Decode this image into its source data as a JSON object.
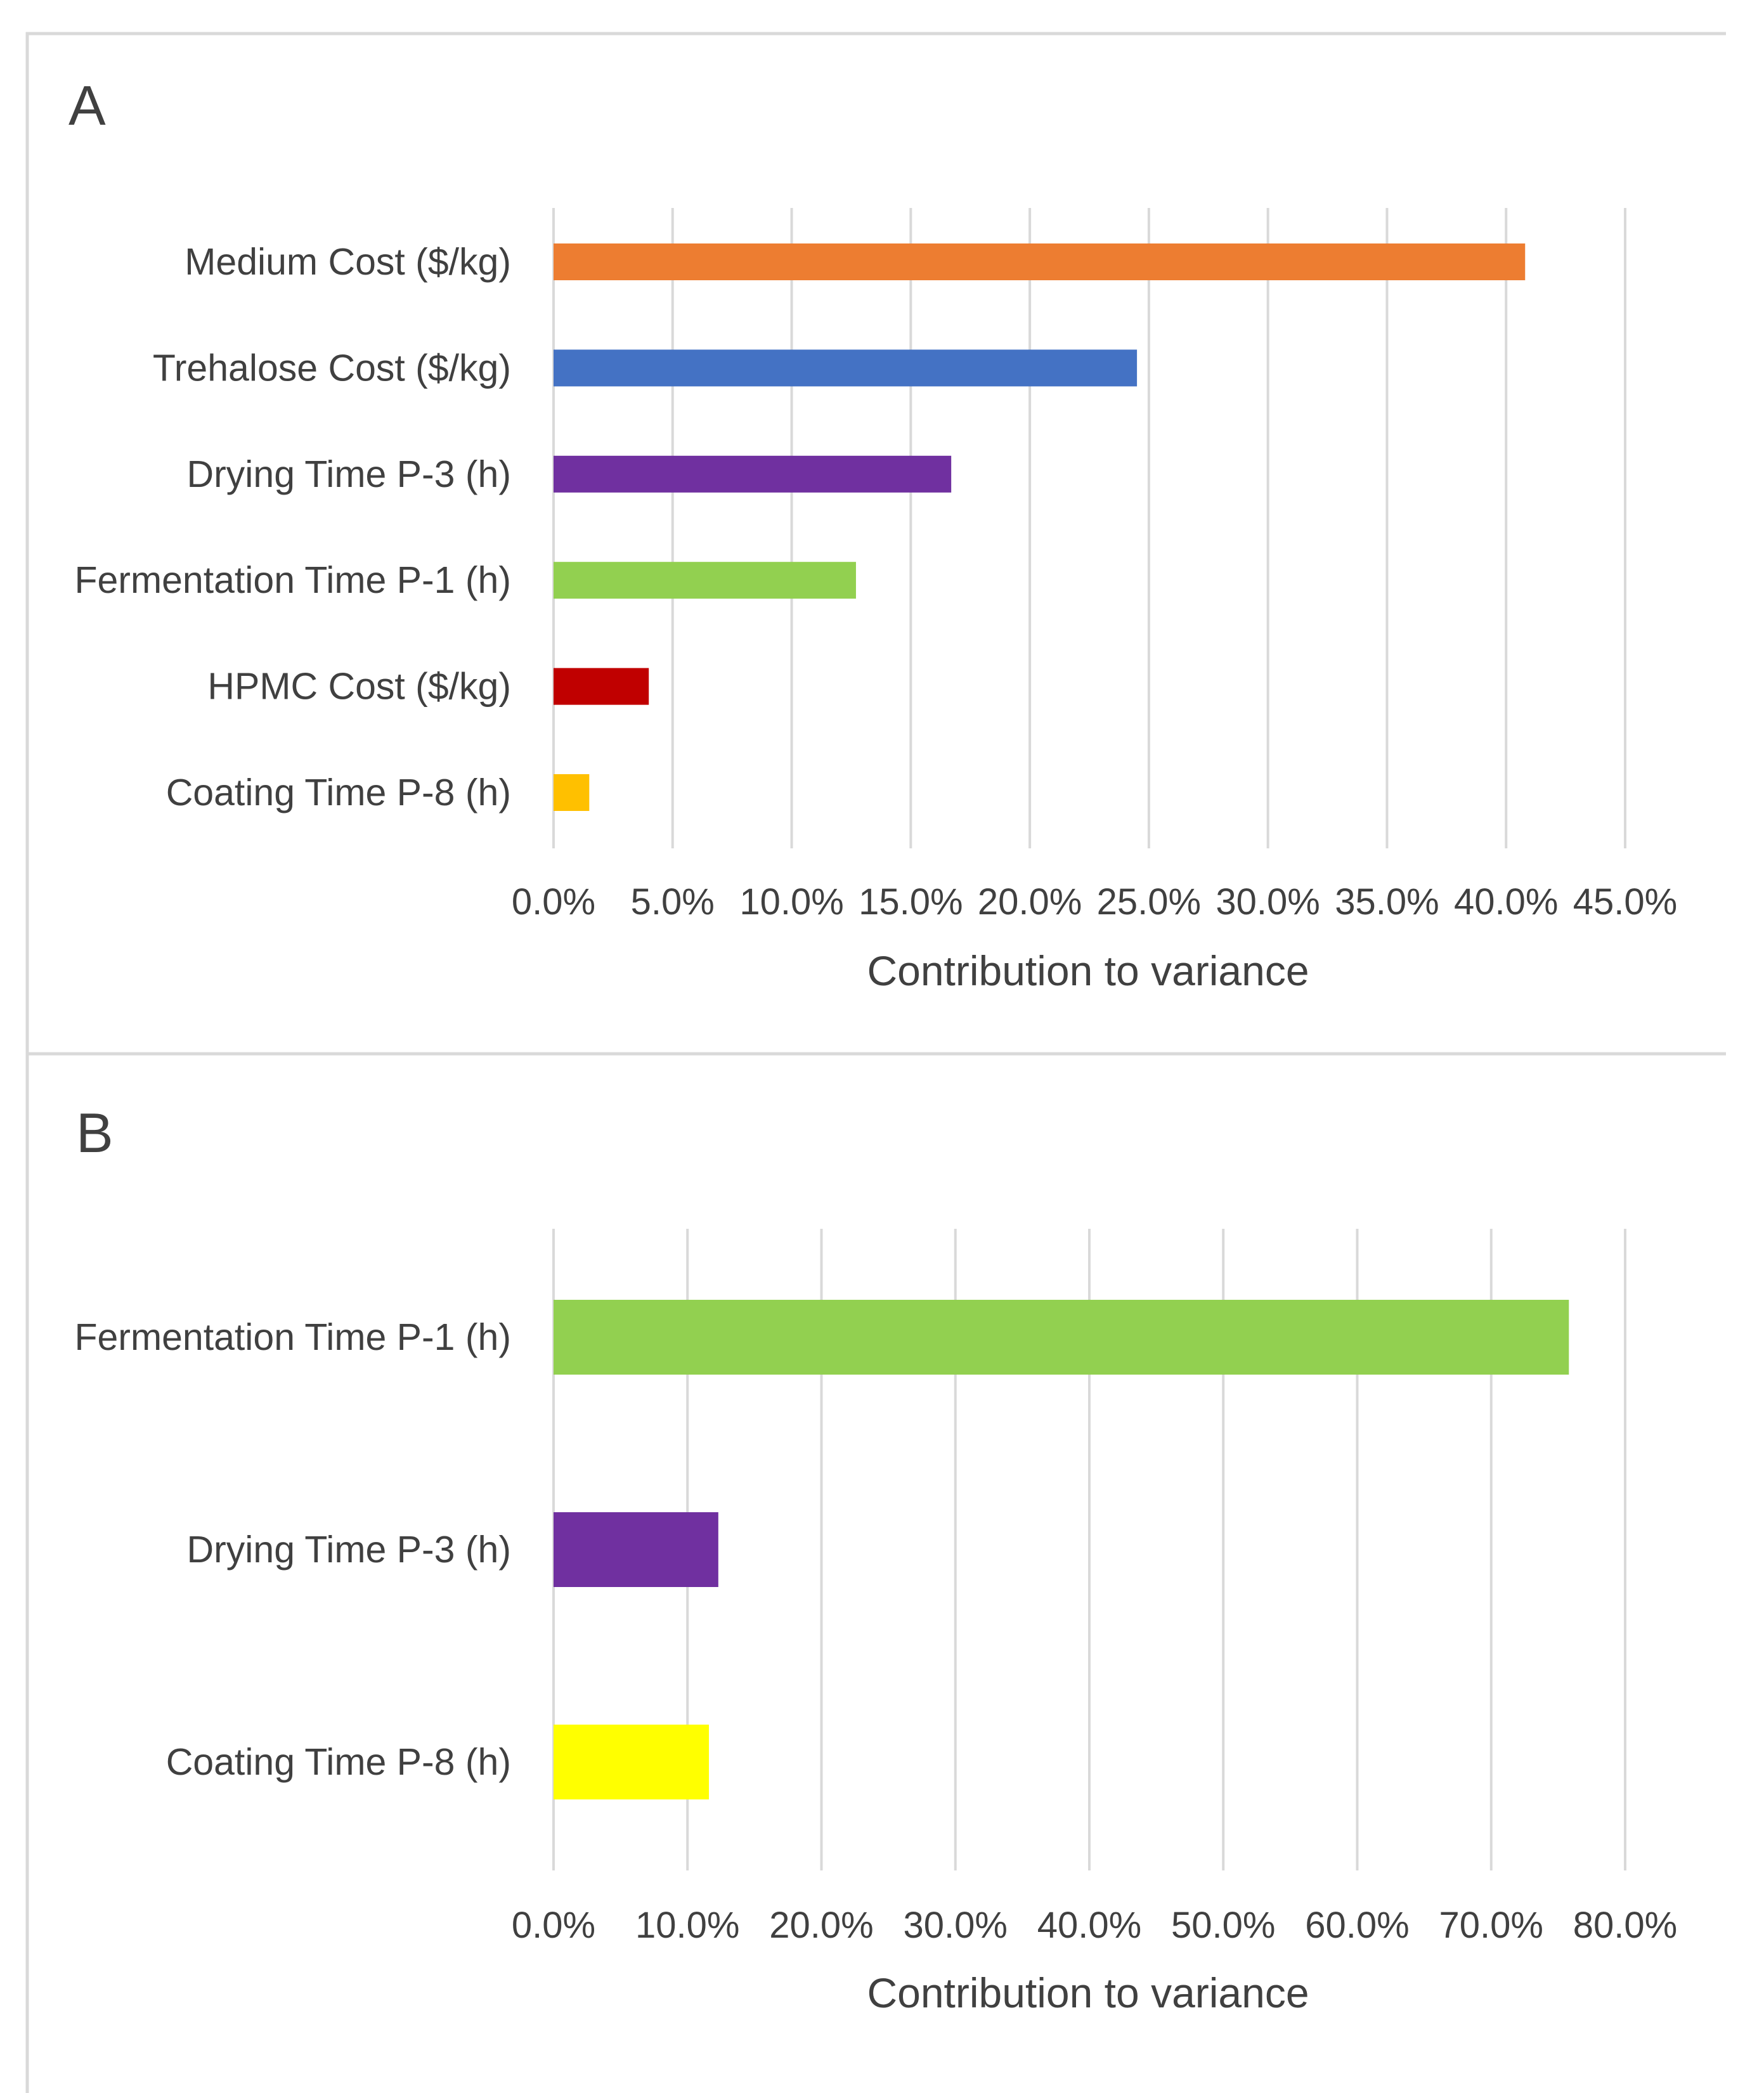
{
  "chart_data": [
    {
      "panel_label": "A",
      "type": "bar",
      "orientation": "horizontal",
      "categories": [
        "Medium Cost ($/kg)",
        "Trehalose Cost ($/kg)",
        "Drying Time P-3 (h)",
        "Fermentation Time P-1 (h)",
        "HPMC Cost ($/kg)",
        "Coating Time P-8 (h)"
      ],
      "values": [
        40.8,
        24.5,
        16.7,
        12.7,
        4.0,
        1.5
      ],
      "colors": [
        "#ED7D31",
        "#4472C4",
        "#7030A0",
        "#92D050",
        "#C00000",
        "#FFC000"
      ],
      "xlabel": "Contribution to variance",
      "xlim": [
        0,
        45
      ],
      "ticks": [
        "0.0%",
        "5.0%",
        "10.0%",
        "15.0%",
        "20.0%",
        "25.0%",
        "30.0%",
        "35.0%",
        "40.0%",
        "45.0%"
      ],
      "grid": true
    },
    {
      "panel_label": "B",
      "type": "bar",
      "orientation": "horizontal",
      "categories": [
        "Fermentation Time P-1 (h)",
        "Drying Time P-3 (h)",
        "Coating Time P-8 (h)"
      ],
      "values": [
        75.8,
        12.3,
        11.6
      ],
      "colors": [
        "#92D050",
        "#7030A0",
        "#FFFF00"
      ],
      "xlabel": "Contribution to variance",
      "xlim": [
        0,
        80
      ],
      "ticks": [
        "0.0%",
        "10.0%",
        "20.0%",
        "30.0%",
        "40.0%",
        "50.0%",
        "60.0%",
        "70.0%",
        "80.0%"
      ],
      "grid": true
    }
  ]
}
